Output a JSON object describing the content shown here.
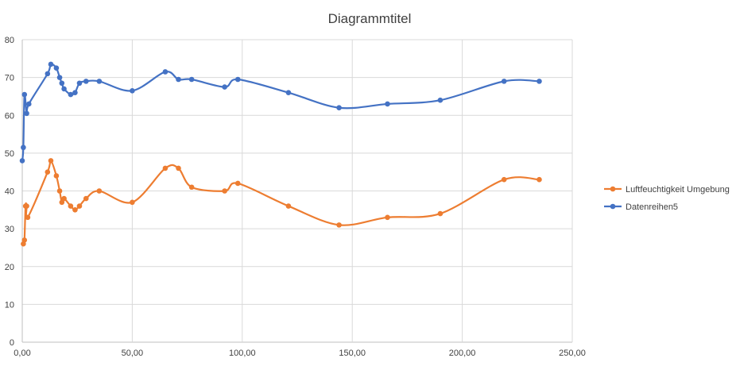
{
  "chart_data": {
    "type": "scatter",
    "title": "Diagrammtitel",
    "xlabel": "",
    "ylabel": "",
    "xlim": [
      0,
      250
    ],
    "ylim": [
      0,
      80
    ],
    "x_ticks": [
      "0,00",
      "50,00",
      "100,00",
      "150,00",
      "200,00",
      "250,00"
    ],
    "y_ticks": [
      "0",
      "10",
      "20",
      "30",
      "40",
      "50",
      "60",
      "70",
      "80"
    ],
    "grid": true,
    "smooth_lines": true,
    "markers": true,
    "legend_position": "right",
    "series": [
      {
        "name": "Luftfeuchtigkeit Umgebung",
        "color": "#ED7D31",
        "points": [
          [
            0.5,
            26
          ],
          [
            1,
            27
          ],
          [
            1.5,
            36
          ],
          [
            2,
            36
          ],
          [
            2.5,
            33
          ],
          [
            11.5,
            45
          ],
          [
            13,
            48
          ],
          [
            15.5,
            44
          ],
          [
            17,
            40
          ],
          [
            18,
            37
          ],
          [
            19,
            38
          ],
          [
            22,
            36
          ],
          [
            24,
            35
          ],
          [
            26,
            36
          ],
          [
            29,
            38
          ],
          [
            35,
            40
          ],
          [
            50,
            37
          ],
          [
            65,
            46
          ],
          [
            71,
            46
          ],
          [
            77,
            41
          ],
          [
            92,
            40
          ],
          [
            98,
            42
          ],
          [
            121,
            36
          ],
          [
            144,
            31
          ],
          [
            166,
            33
          ],
          [
            190,
            34
          ],
          [
            219,
            43
          ],
          [
            235,
            43
          ]
        ]
      },
      {
        "name": "Datenreihen5",
        "color": "#4472C4",
        "points": [
          [
            0,
            48
          ],
          [
            0.5,
            51.5
          ],
          [
            1,
            65.5
          ],
          [
            2,
            60.5
          ],
          [
            3,
            63
          ],
          [
            11.5,
            71
          ],
          [
            13,
            73.5
          ],
          [
            15.5,
            72.5
          ],
          [
            17,
            70
          ],
          [
            18,
            68.5
          ],
          [
            19,
            67
          ],
          [
            22,
            65.5
          ],
          [
            24,
            66
          ],
          [
            26,
            68.5
          ],
          [
            29,
            69
          ],
          [
            35,
            69
          ],
          [
            50,
            66.5
          ],
          [
            65,
            71.5
          ],
          [
            71,
            69.5
          ],
          [
            77,
            69.5
          ],
          [
            92,
            67.5
          ],
          [
            98,
            69.5
          ],
          [
            121,
            66
          ],
          [
            144,
            62
          ],
          [
            166,
            63
          ],
          [
            190,
            64
          ],
          [
            219,
            69
          ],
          [
            235,
            69
          ]
        ]
      }
    ]
  }
}
